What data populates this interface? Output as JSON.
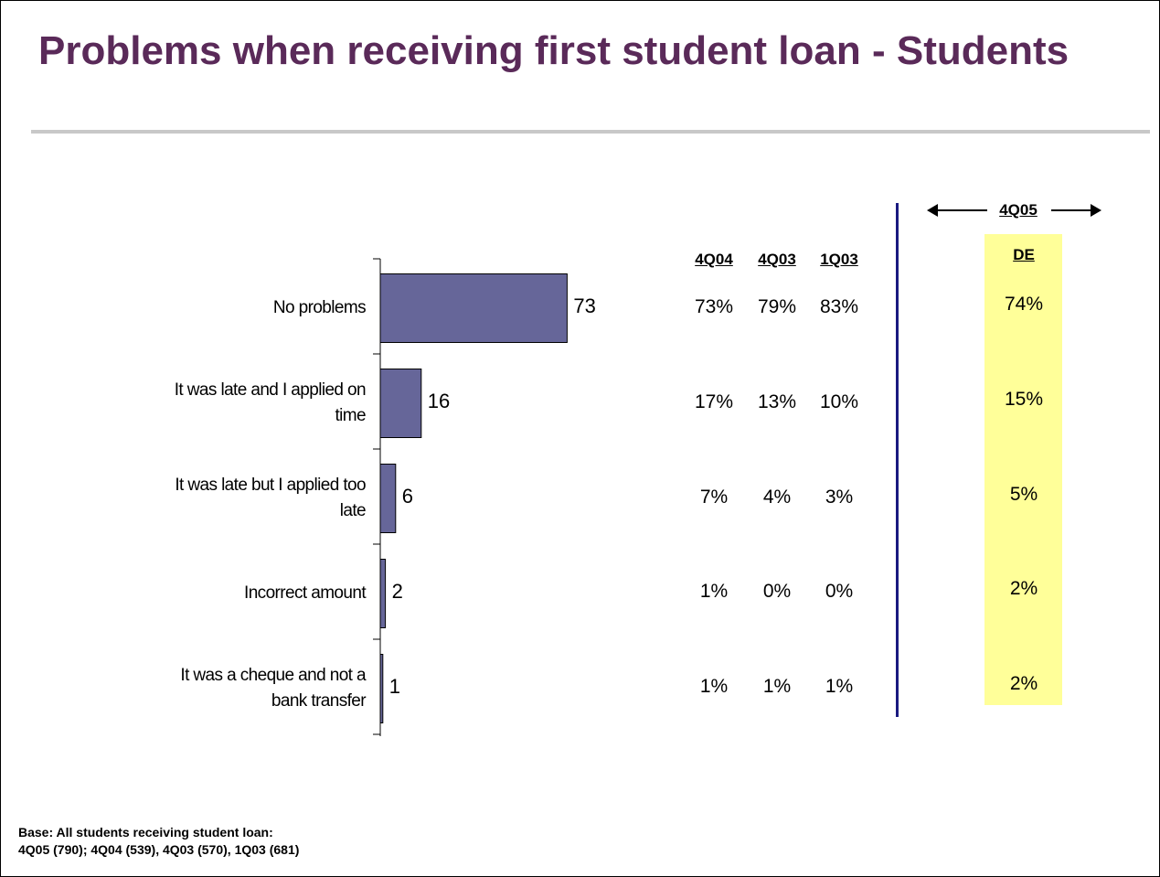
{
  "slide": {
    "title": "Problems when receiving first student loan - Students",
    "base_line1": "Base:  All students receiving student loan:",
    "base_line2": "4Q05 (790); 4Q04 (539), 4Q03 (570), 1Q03 (681)"
  },
  "colors": {
    "title": "#5a2a59",
    "bar": "#666699",
    "highlight": "#ffff99",
    "divider": "#1a1a80"
  },
  "chart_data": {
    "type": "bar",
    "orientation": "horizontal",
    "categories": [
      "No problems",
      "It was late and I applied on time",
      "It was late but I applied too late",
      "Incorrect amount",
      "It was a cheque and not a bank transfer"
    ],
    "category_lines": [
      [
        "No problems"
      ],
      [
        "It was late and I applied on",
        "time"
      ],
      [
        "It was late but I applied too",
        "late"
      ],
      [
        "Incorrect amount"
      ],
      [
        "It was a cheque and not a",
        "bank transfer"
      ]
    ],
    "values": [
      73,
      16,
      6,
      2,
      1
    ],
    "value_labels": [
      "73",
      "16",
      "6",
      "2",
      "1"
    ],
    "xlim": [
      0,
      100
    ],
    "grid": false,
    "legend": "none"
  },
  "table": {
    "group_header": "4Q05",
    "columns": [
      "4Q04",
      "4Q03",
      "1Q03"
    ],
    "rows": [
      [
        "73%",
        "79%",
        "83%"
      ],
      [
        "17%",
        "13%",
        "10%"
      ],
      [
        "7%",
        "4%",
        "3%"
      ],
      [
        "1%",
        "0%",
        "0%"
      ],
      [
        "1%",
        "1%",
        "1%"
      ]
    ],
    "de_header": "DE",
    "de_values": [
      "74%",
      "15%",
      "5%",
      "2%",
      "2%"
    ]
  }
}
